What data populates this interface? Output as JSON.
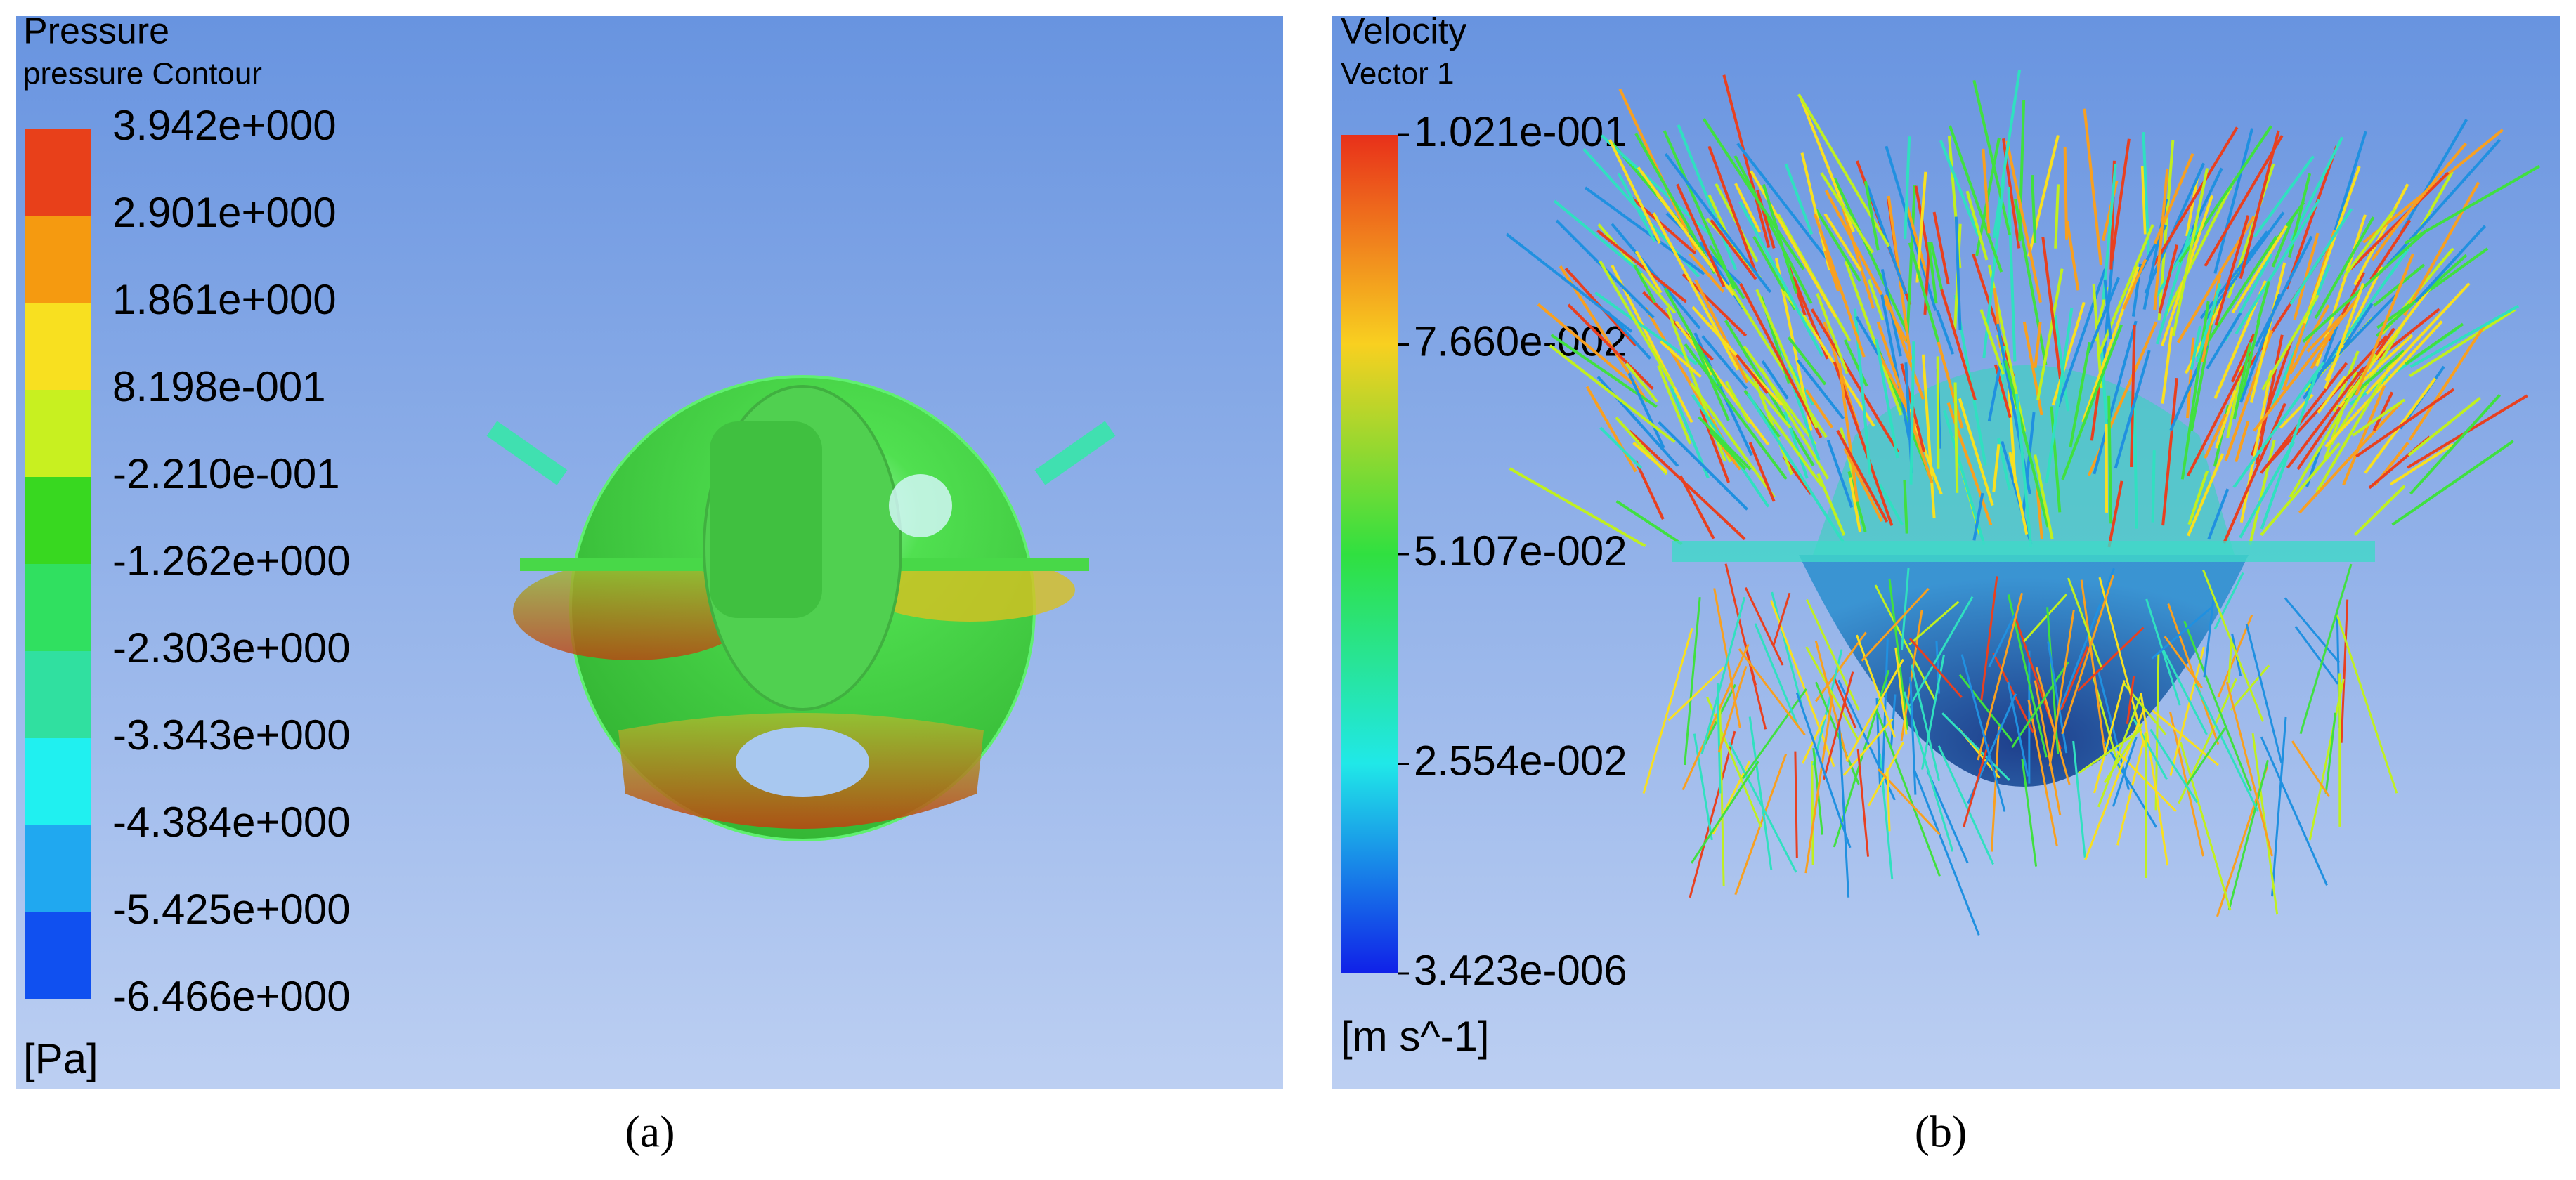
{
  "panels": [
    {
      "title": "Pressure",
      "subtitle": "pressure Contour",
      "legend": [
        "3.942e+000",
        "2.901e+000",
        "1.861e+000",
        "8.198e-001",
        "-2.210e-001",
        "-1.262e+000",
        "-2.303e+000",
        "-3.343e+000",
        "-4.384e+000",
        "-5.425e+000",
        "-6.466e+000"
      ],
      "unit": "[Pa]",
      "caption": "(a)"
    },
    {
      "title": "Velocity",
      "subtitle": "Vector 1",
      "legend": [
        "1.021e-001",
        "7.660e-002",
        "5.107e-002",
        "2.554e-002",
        "3.423e-006"
      ],
      "unit": "[m s^-1]",
      "caption": "(b)"
    }
  ]
}
